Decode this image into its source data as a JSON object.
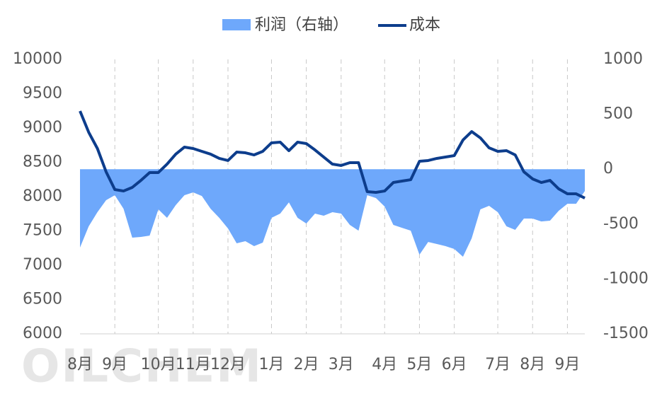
{
  "chart_data": {
    "type": "combo",
    "watermark": "OILCHEM",
    "categories": [
      "8月",
      null,
      null,
      null,
      "9月",
      null,
      null,
      null,
      null,
      "10月",
      null,
      null,
      null,
      "11月",
      null,
      null,
      null,
      "12月",
      null,
      null,
      null,
      null,
      "1月",
      null,
      null,
      null,
      "2月",
      null,
      null,
      null,
      "3月",
      null,
      null,
      null,
      null,
      "4月",
      null,
      null,
      null,
      "5月",
      null,
      null,
      null,
      "6月",
      null,
      null,
      null,
      null,
      "7月",
      null,
      null,
      null,
      "8月",
      null,
      null,
      null,
      "9月",
      null,
      null
    ],
    "series": [
      {
        "name": "利润（右轴）",
        "type": "area",
        "axis": "y2",
        "color": "#6ea8fb",
        "values": [
          -714,
          -521,
          -392,
          -282,
          -237,
          -360,
          -624,
          -617,
          -605,
          -366,
          -443,
          -327,
          -237,
          -211,
          -244,
          -360,
          -443,
          -540,
          -675,
          -656,
          -701,
          -669,
          -443,
          -405,
          -302,
          -443,
          -495,
          -405,
          -424,
          -392,
          -405,
          -508,
          -560,
          -237,
          -263,
          -340,
          -508,
          -534,
          -560,
          -779,
          -663,
          -682,
          -701,
          -727,
          -798,
          -630,
          -366,
          -334,
          -392,
          -521,
          -553,
          -450,
          -450,
          -476,
          -469,
          -379,
          -315,
          -315,
          -199
        ]
      },
      {
        "name": "成本",
        "type": "line",
        "axis": "y",
        "color": "#0d3d8c",
        "values": [
          9247,
          8938,
          8701,
          8361,
          8103,
          8082,
          8134,
          8237,
          8351,
          8351,
          8474,
          8619,
          8722,
          8701,
          8660,
          8619,
          8557,
          8526,
          8649,
          8639,
          8608,
          8660,
          8784,
          8794,
          8670,
          8794,
          8773,
          8680,
          8577,
          8474,
          8454,
          8495,
          8495,
          8072,
          8062,
          8082,
          8206,
          8227,
          8247,
          8515,
          8526,
          8557,
          8577,
          8598,
          8825,
          8948,
          8856,
          8711,
          8660,
          8670,
          8608,
          8361,
          8258,
          8206,
          8237,
          8113,
          8041,
          8041,
          7979
        ]
      }
    ],
    "ylim": [
      6000,
      10000
    ],
    "yticks": [
      6000,
      6500,
      7000,
      7500,
      8000,
      8500,
      9000,
      9500,
      10000
    ],
    "y2lim": [
      -1500,
      1000
    ],
    "y2ticks": [
      -1500,
      -1000,
      -500,
      0,
      500,
      1000
    ]
  }
}
